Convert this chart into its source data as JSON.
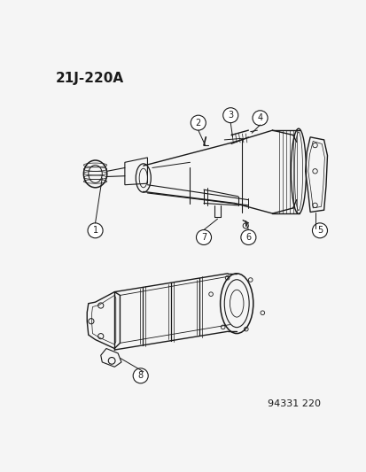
{
  "title": "21J-220A",
  "footer": "94331 220",
  "bg_color": "#f5f5f5",
  "line_color": "#1a1a1a",
  "title_fontsize": 11,
  "footer_fontsize": 8,
  "fig_width": 4.14,
  "fig_height": 5.33,
  "dpi": 100
}
